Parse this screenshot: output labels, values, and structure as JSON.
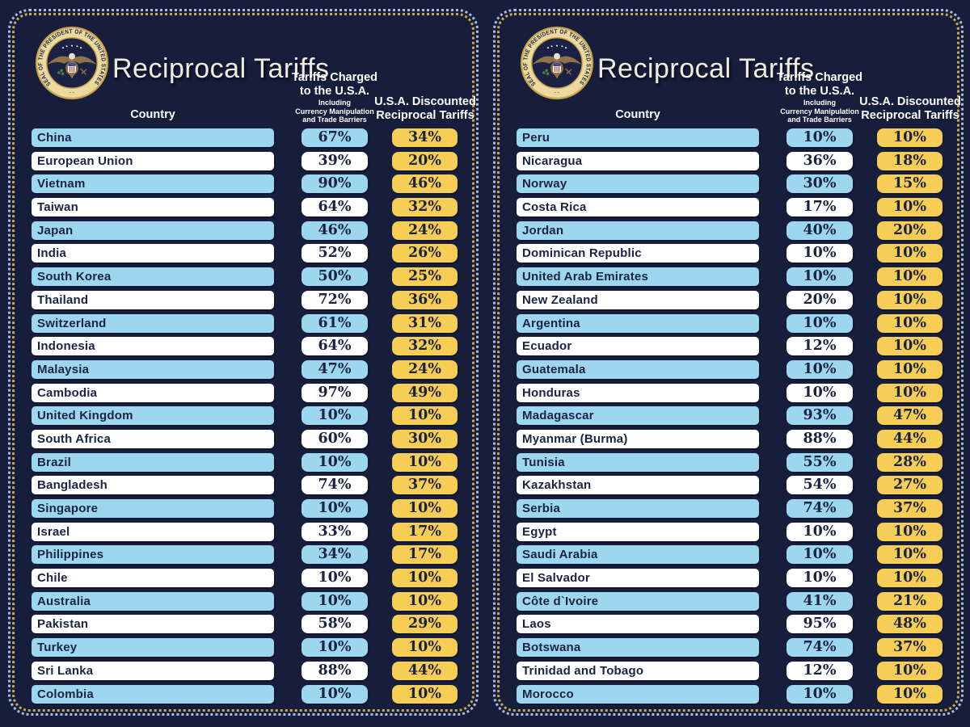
{
  "title": "Reciprocal Tariffs",
  "seal": {
    "name": "Seal of the President of the United States",
    "ring_text": "SEAL OF THE PRESIDENT OF THE UNITED STATES"
  },
  "labels": {
    "country": "Country",
    "charged_l1": "Tariffs Charged",
    "charged_l2": "to the U.S.A.",
    "charged_s1": "Including",
    "charged_s2": "Currency Manipulation",
    "charged_s3": "and Trade Barriers",
    "discount_l1": "U.S.A. Discounted",
    "discount_l2": "Reciprocal Tariffs"
  },
  "colors": {
    "background": "#171e3c",
    "row_blue": "#9dd7ef",
    "row_white": "#ffffff",
    "value_yellow": "#f6cd55",
    "cell_text": "#1b2343",
    "header_text": "#ffffff",
    "border_gold": "#c8a94e",
    "border_light": "#aebbdd",
    "seal_gold": "#c9a44a"
  },
  "unit": "%",
  "chart_data": {
    "type": "table",
    "title": "Reciprocal Tariffs",
    "columns": [
      "Country",
      "Tariffs Charged to the U.S.A. Including Currency Manipulation and Trade Barriers",
      "U.S.A. Discounted Reciprocal Tariffs"
    ],
    "panels": [
      {
        "rows": [
          [
            "China",
            67,
            34
          ],
          [
            "European Union",
            39,
            20
          ],
          [
            "Vietnam",
            90,
            46
          ],
          [
            "Taiwan",
            64,
            32
          ],
          [
            "Japan",
            46,
            24
          ],
          [
            "India",
            52,
            26
          ],
          [
            "South Korea",
            50,
            25
          ],
          [
            "Thailand",
            72,
            36
          ],
          [
            "Switzerland",
            61,
            31
          ],
          [
            "Indonesia",
            64,
            32
          ],
          [
            "Malaysia",
            47,
            24
          ],
          [
            "Cambodia",
            97,
            49
          ],
          [
            "United Kingdom",
            10,
            10
          ],
          [
            "South Africa",
            60,
            30
          ],
          [
            "Brazil",
            10,
            10
          ],
          [
            "Bangladesh",
            74,
            37
          ],
          [
            "Singapore",
            10,
            10
          ],
          [
            "Israel",
            33,
            17
          ],
          [
            "Philippines",
            34,
            17
          ],
          [
            "Chile",
            10,
            10
          ],
          [
            "Australia",
            10,
            10
          ],
          [
            "Pakistan",
            58,
            29
          ],
          [
            "Turkey",
            10,
            10
          ],
          [
            "Sri Lanka",
            88,
            44
          ],
          [
            "Colombia",
            10,
            10
          ]
        ]
      },
      {
        "rows": [
          [
            "Peru",
            10,
            10
          ],
          [
            "Nicaragua",
            36,
            18
          ],
          [
            "Norway",
            30,
            15
          ],
          [
            "Costa Rica",
            17,
            10
          ],
          [
            "Jordan",
            40,
            20
          ],
          [
            "Dominican Republic",
            10,
            10
          ],
          [
            "United Arab Emirates",
            10,
            10
          ],
          [
            "New Zealand",
            20,
            10
          ],
          [
            "Argentina",
            10,
            10
          ],
          [
            "Ecuador",
            12,
            10
          ],
          [
            "Guatemala",
            10,
            10
          ],
          [
            "Honduras",
            10,
            10
          ],
          [
            "Madagascar",
            93,
            47
          ],
          [
            "Myanmar (Burma)",
            88,
            44
          ],
          [
            "Tunisia",
            55,
            28
          ],
          [
            "Kazakhstan",
            54,
            27
          ],
          [
            "Serbia",
            74,
            37
          ],
          [
            "Egypt",
            10,
            10
          ],
          [
            "Saudi Arabia",
            10,
            10
          ],
          [
            "El Salvador",
            10,
            10
          ],
          [
            "Côte d`Ivoire",
            41,
            21
          ],
          [
            "Laos",
            95,
            48
          ],
          [
            "Botswana",
            74,
            37
          ],
          [
            "Trinidad and Tobago",
            12,
            10
          ],
          [
            "Morocco",
            10,
            10
          ]
        ]
      }
    ]
  }
}
